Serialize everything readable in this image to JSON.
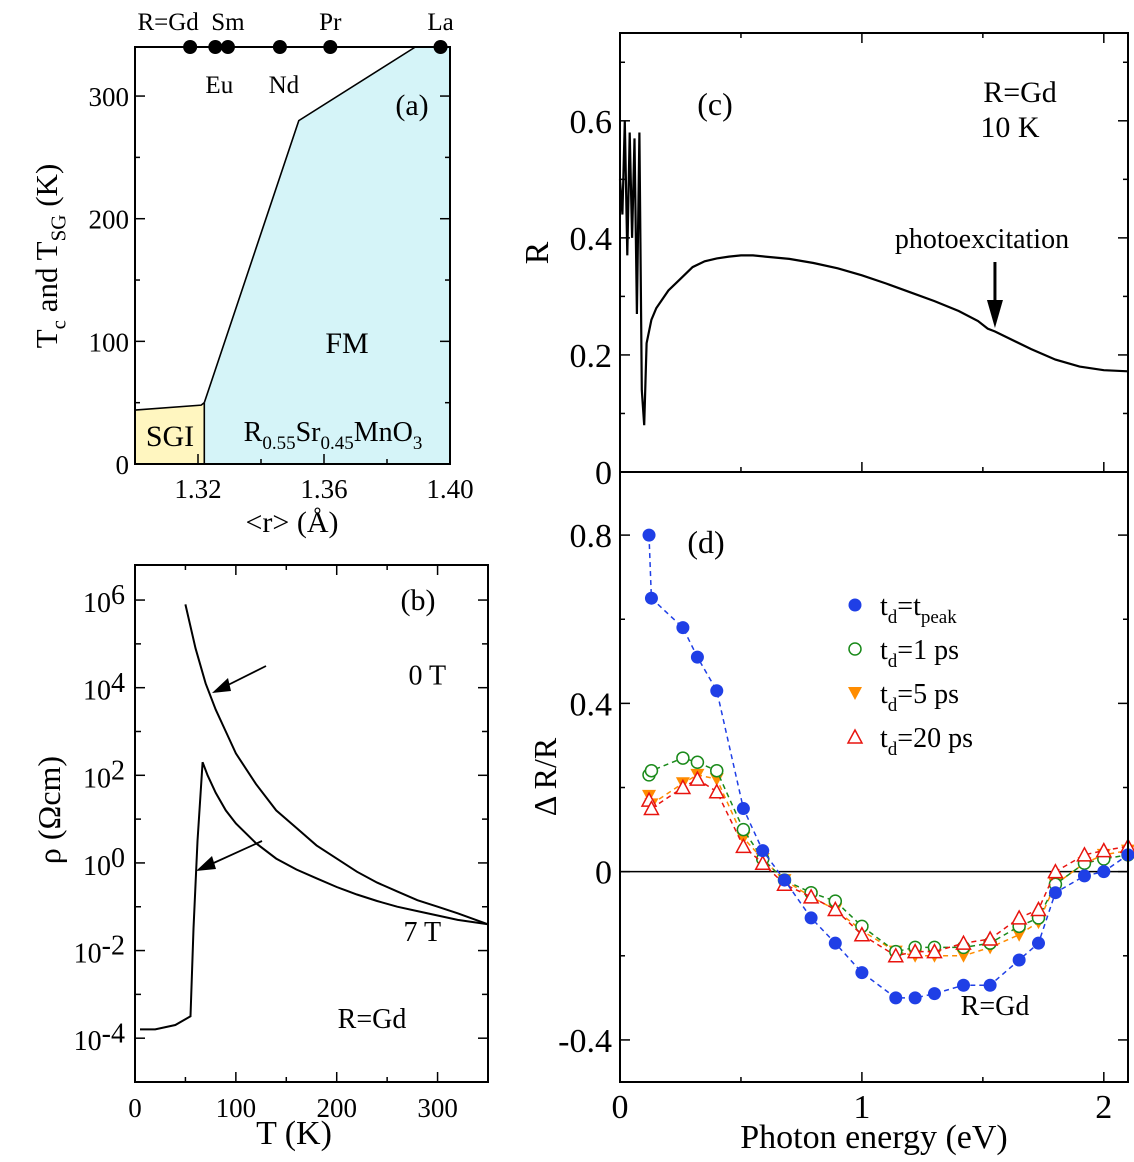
{
  "chart_data": [
    {
      "panel": "a",
      "type": "area",
      "panel_label": "(a)",
      "xlabel": "<r> (Å)",
      "ylabel_parts": {
        "main": "T",
        "sub1": "c",
        "mid": " and T",
        "sub2": "SG",
        "tail": " (K)"
      },
      "xlim": [
        1.3,
        1.4
      ],
      "ylim": [
        0,
        340
      ],
      "x_ticks": [
        "1.32",
        "1.36",
        "1.40"
      ],
      "y_ticks": [
        "0",
        "100",
        "200",
        "300"
      ],
      "fill_colors": {
        "SGI": "#fff6c0",
        "FM": "#d5f4f8"
      },
      "region_labels": {
        "sgi": "SGI",
        "fm": "FM"
      },
      "compound_parts": {
        "r": "R",
        "r_sub": "0.55",
        "sr": "Sr",
        "sr_sub": "0.45",
        "mn": "MnO",
        "mn_sub": "3"
      },
      "sgi_boundary": [
        [
          1.3,
          44
        ],
        [
          1.321,
          48
        ],
        [
          1.322,
          50
        ]
      ],
      "tc_boundary": [
        [
          1.322,
          50
        ],
        [
          1.352,
          280
        ],
        [
          1.389,
          340
        ],
        [
          1.4,
          340
        ]
      ],
      "elements_top": [
        {
          "label": "R=Gd",
          "x": 1.3175
        },
        {
          "label": "Sm",
          "x": 1.3295
        },
        {
          "label": "Pr",
          "x": 1.362
        },
        {
          "label": "La",
          "x": 1.397
        }
      ],
      "elements_bottom": [
        {
          "label": "Eu",
          "x": 1.3255
        },
        {
          "label": "Nd",
          "x": 1.346
        }
      ]
    },
    {
      "panel": "b",
      "type": "line",
      "panel_label": "(b)",
      "xlabel": "T (K)",
      "ylabel": "ρ (Ωcm)",
      "xlim": [
        0,
        350
      ],
      "ylim_log10": [
        -5,
        6.8
      ],
      "x_ticks": [
        "0",
        "100",
        "200",
        "300"
      ],
      "y_ticks_log10": [
        6,
        4,
        2,
        0,
        -2,
        -4
      ],
      "annotation": "R=Gd",
      "series": [
        {
          "name": "0 T",
          "label_x": 270,
          "label_log10": 4.3,
          "points": [
            [
              50,
              5.9
            ],
            [
              60,
              4.9
            ],
            [
              70,
              4.1
            ],
            [
              80,
              3.5
            ],
            [
              90,
              3.0
            ],
            [
              100,
              2.5
            ],
            [
              120,
              1.8
            ],
            [
              140,
              1.2
            ],
            [
              160,
              0.8
            ],
            [
              180,
              0.4
            ],
            [
              200,
              0.1
            ],
            [
              220,
              -0.2
            ],
            [
              240,
              -0.45
            ],
            [
              260,
              -0.65
            ],
            [
              280,
              -0.85
            ],
            [
              300,
              -1.0
            ],
            [
              320,
              -1.15
            ],
            [
              350,
              -1.4
            ]
          ]
        },
        {
          "name": "7 T",
          "label_x": 265,
          "label_log10": -1.55,
          "points": [
            [
              5,
              -3.8
            ],
            [
              20,
              -3.8
            ],
            [
              40,
              -3.7
            ],
            [
              55,
              -3.5
            ],
            [
              58,
              -1.5
            ],
            [
              62,
              0.5
            ],
            [
              67,
              2.3
            ],
            [
              72,
              2.0
            ],
            [
              80,
              1.6
            ],
            [
              90,
              1.2
            ],
            [
              100,
              0.9
            ],
            [
              120,
              0.45
            ],
            [
              140,
              0.1
            ],
            [
              160,
              -0.15
            ],
            [
              180,
              -0.35
            ],
            [
              200,
              -0.55
            ],
            [
              220,
              -0.72
            ],
            [
              240,
              -0.87
            ],
            [
              260,
              -1.0
            ],
            [
              280,
              -1.1
            ],
            [
              300,
              -1.2
            ],
            [
              320,
              -1.3
            ],
            [
              350,
              -1.4
            ]
          ]
        }
      ]
    },
    {
      "panel": "c",
      "type": "line",
      "panel_label": "(c)",
      "ylabel": "R",
      "xlim": [
        0,
        2.1
      ],
      "ylim": [
        0,
        0.75
      ],
      "y_ticks": [
        "0",
        "0.2",
        "0.4",
        "0.6"
      ],
      "annotation_lines": [
        "R=Gd",
        "10 K"
      ],
      "arrow_label": "photoexcitation",
      "arrow_x": 1.55,
      "series": [
        {
          "name": "",
          "points": [
            [
              0.0,
              0.5
            ],
            [
              0.01,
              0.44
            ],
            [
              0.02,
              0.6
            ],
            [
              0.03,
              0.37
            ],
            [
              0.04,
              0.58
            ],
            [
              0.05,
              0.4
            ],
            [
              0.06,
              0.57
            ],
            [
              0.07,
              0.27
            ],
            [
              0.08,
              0.58
            ],
            [
              0.09,
              0.14
            ],
            [
              0.1,
              0.08
            ],
            [
              0.11,
              0.22
            ],
            [
              0.13,
              0.26
            ],
            [
              0.15,
              0.28
            ],
            [
              0.2,
              0.31
            ],
            [
              0.25,
              0.33
            ],
            [
              0.3,
              0.35
            ],
            [
              0.35,
              0.36
            ],
            [
              0.4,
              0.365
            ],
            [
              0.45,
              0.368
            ],
            [
              0.5,
              0.37
            ],
            [
              0.55,
              0.37
            ],
            [
              0.6,
              0.368
            ],
            [
              0.7,
              0.364
            ],
            [
              0.8,
              0.357
            ],
            [
              0.9,
              0.348
            ],
            [
              1.0,
              0.336
            ],
            [
              1.1,
              0.322
            ],
            [
              1.2,
              0.307
            ],
            [
              1.3,
              0.292
            ],
            [
              1.4,
              0.275
            ],
            [
              1.48,
              0.258
            ],
            [
              1.52,
              0.245
            ],
            [
              1.55,
              0.24
            ],
            [
              1.6,
              0.23
            ],
            [
              1.7,
              0.21
            ],
            [
              1.8,
              0.192
            ],
            [
              1.9,
              0.18
            ],
            [
              2.0,
              0.174
            ],
            [
              2.1,
              0.172
            ]
          ]
        }
      ]
    },
    {
      "panel": "d",
      "type": "scatter",
      "panel_label": "(d)",
      "xlabel": "Photon energy (eV)",
      "ylabel": "Δ R/R",
      "xlim": [
        0,
        2.1
      ],
      "ylim": [
        -0.5,
        0.95
      ],
      "x_ticks": [
        "0",
        "1",
        "2"
      ],
      "y_ticks": [
        "-0.4",
        "0",
        "0.4",
        "0.8"
      ],
      "annotation": "R=Gd",
      "series": [
        {
          "name": "tpeak",
          "legend_main": "t",
          "legend_sub": "d",
          "legend_mid": "=t",
          "legend_sub2": "peak",
          "color": "#1f3fe6",
          "marker": "filled-circle",
          "x": [
            0.12,
            0.13,
            0.26,
            0.32,
            0.4,
            0.51,
            0.59,
            0.68,
            0.79,
            0.89,
            1.0,
            1.14,
            1.22,
            1.3,
            1.42,
            1.53,
            1.65,
            1.73,
            1.8,
            1.92,
            2.0,
            2.1
          ],
          "y": [
            0.8,
            0.65,
            0.58,
            0.51,
            0.43,
            0.15,
            0.05,
            -0.02,
            -0.11,
            -0.17,
            -0.24,
            -0.3,
            -0.3,
            -0.29,
            -0.27,
            -0.27,
            -0.21,
            -0.17,
            -0.05,
            -0.01,
            0.0,
            0.04
          ]
        },
        {
          "name": "1 ps",
          "legend_main": "t",
          "legend_sub": "d",
          "legend_mid": "=1 ps",
          "color": "#1a8a1a",
          "marker": "open-circle",
          "x": [
            0.12,
            0.13,
            0.26,
            0.32,
            0.4,
            0.51,
            0.59,
            0.68,
            0.79,
            0.89,
            1.0,
            1.14,
            1.22,
            1.3,
            1.42,
            1.53,
            1.65,
            1.73,
            1.8,
            1.92,
            2.0,
            2.1
          ],
          "y": [
            0.23,
            0.24,
            0.27,
            0.26,
            0.24,
            0.1,
            0.03,
            -0.02,
            -0.05,
            -0.07,
            -0.13,
            -0.19,
            -0.18,
            -0.18,
            -0.18,
            -0.17,
            -0.13,
            -0.11,
            -0.03,
            0.02,
            0.03,
            0.04
          ]
        },
        {
          "name": "5 ps",
          "legend_main": "t",
          "legend_sub": "d",
          "legend_mid": "=5 ps",
          "color": "#ff8c00",
          "marker": "filled-triangle-down",
          "x": [
            0.12,
            0.13,
            0.26,
            0.32,
            0.4,
            0.51,
            0.59,
            0.68,
            0.79,
            0.89,
            1.0,
            1.14,
            1.22,
            1.3,
            1.42,
            1.53,
            1.65,
            1.73,
            1.8,
            1.92,
            2.0,
            2.1
          ],
          "y": [
            0.18,
            0.16,
            0.21,
            0.23,
            0.22,
            0.08,
            0.03,
            -0.02,
            -0.06,
            -0.09,
            -0.14,
            -0.19,
            -0.2,
            -0.2,
            -0.2,
            -0.18,
            -0.15,
            -0.12,
            -0.03,
            0.02,
            0.04,
            0.05
          ]
        },
        {
          "name": "20 ps",
          "legend_main": "t",
          "legend_sub": "d",
          "legend_mid": "=20 ps",
          "color": "#e8140f",
          "marker": "open-triangle-up",
          "x": [
            0.12,
            0.13,
            0.26,
            0.32,
            0.4,
            0.51,
            0.59,
            0.68,
            0.79,
            0.89,
            1.0,
            1.14,
            1.22,
            1.3,
            1.42,
            1.53,
            1.65,
            1.73,
            1.8,
            1.92,
            2.0,
            2.1
          ],
          "y": [
            0.17,
            0.15,
            0.2,
            0.22,
            0.19,
            0.06,
            0.02,
            -0.03,
            -0.06,
            -0.09,
            -0.15,
            -0.2,
            -0.19,
            -0.19,
            -0.17,
            -0.16,
            -0.11,
            -0.09,
            0.0,
            0.04,
            0.05,
            0.06
          ]
        }
      ]
    }
  ]
}
